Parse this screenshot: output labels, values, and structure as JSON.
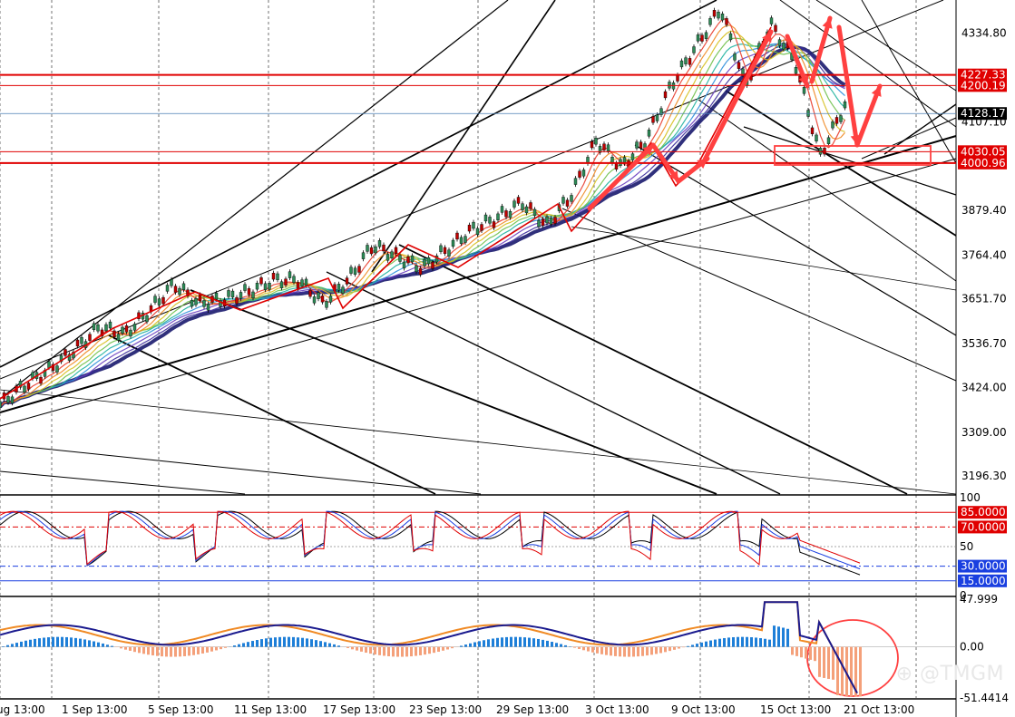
{
  "watermark": "@TMGM",
  "chart_data": [
    {
      "type": "candlestick",
      "title": "",
      "y_ticks": [
        "4334.80",
        "4107.10",
        "3879.40",
        "3764.40",
        "3651.70",
        "3536.70",
        "3424.00",
        "3309.00",
        "3196.30"
      ],
      "ylim": [
        3150,
        4420
      ],
      "x_ticks": [
        "ug 13:00",
        "1 Sep 13:00",
        "5 Sep 13:00",
        "11 Sep 13:00",
        "17 Sep 13:00",
        "23 Sep 13:00",
        "29 Sep 13:00",
        "3 Oct 13:00",
        "9 Oct 13:00",
        "15 Oct 13:00",
        "21 Oct 13:00"
      ],
      "horizontal_levels": [
        {
          "label": "4227.33",
          "value": 4227.33,
          "color": "#e00000",
          "bg": "#e00000",
          "fg": "#ffffff"
        },
        {
          "label": "4200.19",
          "value": 4200.19,
          "color": "#e00000",
          "bg": "#e00000",
          "fg": "#ffffff"
        },
        {
          "label": "4128.17",
          "value": 4128.17,
          "color": "#4a7fb5",
          "bg": "#000000",
          "fg": "#ffffff"
        },
        {
          "label": "4030.05",
          "value": 4030.05,
          "color": "#e00000",
          "bg": "#e00000",
          "fg": "#ffffff"
        },
        {
          "label": "4000.96",
          "value": 4000.96,
          "color": "#e00000",
          "bg": "#e00000",
          "fg": "#ffffff"
        }
      ],
      "highs_lows_path": [
        3380,
        3430,
        3470,
        3520,
        3580,
        3560,
        3620,
        3690,
        3640,
        3650,
        3670,
        3700,
        3700,
        3640,
        3700,
        3790,
        3760,
        3730,
        3780,
        3830,
        3860,
        3900,
        3840,
        3920,
        4060,
        3990,
        4060,
        4200,
        4300,
        4400,
        4200,
        4360,
        4260,
        4020,
        4150
      ],
      "colors": {
        "up": "#2e8b57",
        "down": "#c00000",
        "ribbon_main": "#1a1a6e"
      }
    },
    {
      "type": "line",
      "title": "",
      "y_ticks": [
        "100",
        "50",
        "0"
      ],
      "levels": [
        {
          "label": "85.0000",
          "value": 85,
          "bg": "#e00000",
          "fg": "#ffffff"
        },
        {
          "label": "70.0000",
          "value": 70,
          "bg": "#e00000",
          "fg": "#ffffff"
        },
        {
          "label": "30.0000",
          "value": 30,
          "bg": "#1a3fe0",
          "fg": "#ffffff"
        },
        {
          "label": "15.0000",
          "value": 15,
          "bg": "#1a3fe0",
          "fg": "#ffffff"
        }
      ],
      "ylim": [
        0,
        100
      ]
    },
    {
      "type": "bar+line",
      "title": "",
      "y_ticks": [
        "47.999",
        "0.00",
        "-51.4414"
      ],
      "ylim": [
        -51.4414,
        47.999
      ]
    }
  ]
}
